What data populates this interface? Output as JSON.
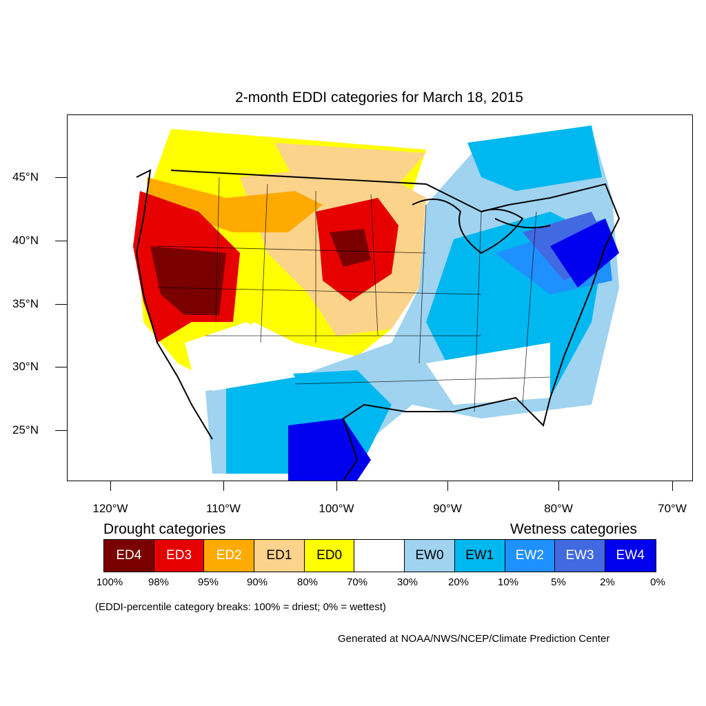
{
  "title": "2-month EDDI categories for March 18, 2015",
  "lat_ticks": [
    "45°N",
    "40°N",
    "35°N",
    "30°N",
    "25°N"
  ],
  "lon_ticks": [
    "120°W",
    "110°W",
    "100°W",
    "90°W",
    "80°W",
    "70°W"
  ],
  "legend": {
    "drought_heading": "Drought categories",
    "wetness_heading": "Wetness categories",
    "categories": [
      {
        "label": "ED4",
        "color": "#7a0000",
        "text_color": "#ffffff"
      },
      {
        "label": "ED3",
        "color": "#e60000",
        "text_color": "#ffffff"
      },
      {
        "label": "ED2",
        "color": "#ffaa00",
        "text_color": "#ffffff"
      },
      {
        "label": "ED1",
        "color": "#fcd38b",
        "text_color": "#000000"
      },
      {
        "label": "ED0",
        "color": "#ffff00",
        "text_color": "#000000"
      },
      {
        "label": "",
        "color": "#ffffff",
        "text_color": "#000000"
      },
      {
        "label": "EW0",
        "color": "#9fd3f0",
        "text_color": "#000000"
      },
      {
        "label": "EW1",
        "color": "#00b8f0",
        "text_color": "#000000"
      },
      {
        "label": "EW2",
        "color": "#1e90ff",
        "text_color": "#ffffff"
      },
      {
        "label": "EW3",
        "color": "#4169e1",
        "text_color": "#ffffff"
      },
      {
        "label": "EW4",
        "color": "#0000ee",
        "text_color": "#ffffff"
      }
    ],
    "breaks": [
      "100%",
      "98%",
      "95%",
      "90%",
      "80%",
      "70%",
      "30%",
      "20%",
      "10%",
      "5%",
      "2%",
      "0%"
    ],
    "note": "(EDDI-percentile category breaks: 100% = driest; 0% = wettest)"
  },
  "credit": "Generated at NOAA/NWS/NCEP/Climate Prediction Center"
}
